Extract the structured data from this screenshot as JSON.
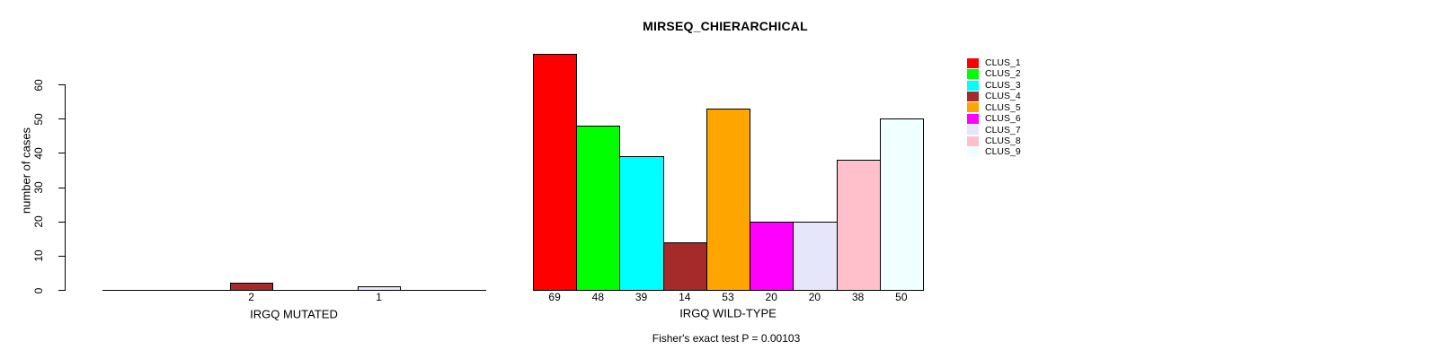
{
  "chart_data": {
    "type": "bar",
    "title": "MIRSEQ_CHIERARCHICAL",
    "ylabel": "number of cases",
    "xlabel": "",
    "ylim": [
      0,
      69
    ],
    "yticks": [
      0,
      10,
      20,
      30,
      40,
      50,
      60
    ],
    "grid": false,
    "legend_position": "right",
    "categories": [
      "CLUS_1",
      "CLUS_2",
      "CLUS_3",
      "CLUS_4",
      "CLUS_5",
      "CLUS_6",
      "CLUS_7",
      "CLUS_8",
      "CLUS_9"
    ],
    "colors": [
      "#FF0000",
      "#00FF00",
      "#00FFFF",
      "#A52A2A",
      "#FFA500",
      "#FF00FF",
      "#E6E6FA",
      "#FFC0CB",
      "#F0FFFF"
    ],
    "groups": [
      {
        "xlabel": "IRGQ MUTATED",
        "values": [
          0,
          0,
          0,
          2,
          0,
          0,
          1,
          0,
          0
        ]
      },
      {
        "xlabel": "IRGQ WILD-TYPE",
        "values": [
          69,
          48,
          39,
          14,
          53,
          20,
          20,
          38,
          50
        ]
      }
    ],
    "bar_labels_visible": [
      "2",
      "1",
      "69",
      "48",
      "39",
      "14",
      "53",
      "20",
      "20",
      "38",
      "50"
    ],
    "annotation": "Fisher's exact test P = 0.00103"
  },
  "legend": {
    "items": [
      {
        "label": "CLUS_1",
        "color": "#FF0000"
      },
      {
        "label": "CLUS_2",
        "color": "#00FF00"
      },
      {
        "label": "CLUS_3",
        "color": "#00FFFF"
      },
      {
        "label": "CLUS_4",
        "color": "#A52A2A"
      },
      {
        "label": "CLUS_5",
        "color": "#FFA500"
      },
      {
        "label": "CLUS_6",
        "color": "#FF00FF"
      },
      {
        "label": "CLUS_7",
        "color": "#E6E6FA"
      },
      {
        "label": "CLUS_8",
        "color": "#FFC0CB"
      },
      {
        "label": "CLUS_9",
        "color": "#F0FFFF"
      }
    ]
  }
}
